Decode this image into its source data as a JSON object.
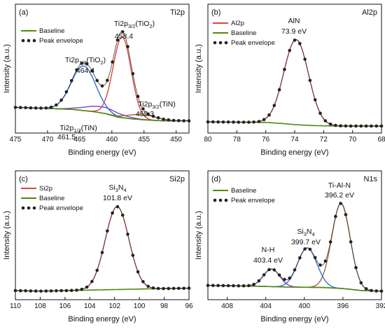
{
  "colors": {
    "baseline": "#4f8a10",
    "envelope_dots": "#222222",
    "envelope_line": "#3b3b3b",
    "red": "#e0453a",
    "blue": "#2f6fd6",
    "purple": "#7b3fd6",
    "brown": "#9a6a3a"
  },
  "chart_data": [
    {
      "panel": "(a)",
      "tag": "Ti2p",
      "type": "line",
      "xlabel": "Binding energy (eV)",
      "ylabel": "Intensity (a.u.)",
      "xlim": [
        475,
        448
      ],
      "xticks": [
        475,
        470,
        465,
        460,
        455,
        450
      ],
      "ylim": [
        0,
        100
      ],
      "legend": [
        "Baseline",
        "Peak envelope"
      ],
      "legend_position": "top-left",
      "baseline": [
        [
          475,
          18
        ],
        [
          470,
          17
        ],
        [
          466,
          16
        ],
        [
          463,
          14
        ],
        [
          461,
          12
        ],
        [
          459,
          8.5
        ],
        [
          457,
          7
        ],
        [
          455,
          6
        ],
        [
          452,
          5
        ],
        [
          448,
          5
        ]
      ],
      "peaks": [
        {
          "color": "red",
          "center": 458.4,
          "height": 78,
          "width": 1.4
        },
        {
          "color": "blue",
          "center": 464.4,
          "height": 43,
          "width": 1.9
        },
        {
          "color": "purple",
          "center": 461.5,
          "height": 6,
          "width": 2.6
        },
        {
          "color": "brown",
          "center": 455.3,
          "height": 5,
          "width": 2.2
        }
      ],
      "annotations": [
        {
          "id": "a1",
          "label": "Ti2p",
          "sub": "3/2",
          "suffix": "(TiO",
          "sub2": "2",
          "suffix2": ")",
          "value": "458.4"
        },
        {
          "id": "a2",
          "label": "Ti2p",
          "sub": "1/2",
          "suffix": "(TiO",
          "sub2": "2",
          "suffix2": ")",
          "value": "464.4"
        },
        {
          "id": "a3",
          "label": "Ti2p",
          "sub": "3/2",
          "suffix": "(TiN)",
          "value": "455.3"
        },
        {
          "id": "a4",
          "label": "Ti2p",
          "sub": "1/2",
          "suffix": "(TiN)",
          "value": "461.5"
        }
      ]
    },
    {
      "panel": "(b)",
      "tag": "Al2p",
      "type": "line",
      "xlabel": "Binding energy (eV)",
      "ylabel": "Intensity (a.u.)",
      "xlim": [
        80,
        68
      ],
      "xticks": [
        80,
        78,
        76,
        74,
        72,
        70,
        68
      ],
      "ylim": [
        0,
        100
      ],
      "legend": [
        "Al2p",
        "Baseline",
        "Peak envelope"
      ],
      "legend_position": "top-left",
      "baseline": [
        [
          80,
          4
        ],
        [
          76,
          3.5
        ],
        [
          75,
          2.6
        ],
        [
          74,
          1.4
        ],
        [
          73,
          0.6
        ],
        [
          72,
          0.2
        ],
        [
          70,
          0
        ],
        [
          68,
          0
        ]
      ],
      "peaks": [
        {
          "color": "red",
          "center": 73.9,
          "height": 82,
          "width": 0.85
        }
      ],
      "annotations": [
        {
          "id": "b1",
          "label": "AlN",
          "value": "73.9 eV"
        }
      ]
    },
    {
      "panel": "(c)",
      "tag": "Si2p",
      "type": "line",
      "xlabel": "Binding energy (eV)",
      "ylabel": "Intensity (a.u.)",
      "xlim": [
        110,
        96
      ],
      "xticks": [
        110,
        108,
        106,
        104,
        102,
        100,
        98,
        96
      ],
      "ylim": [
        0,
        100
      ],
      "legend": [
        "Si2p",
        "Baseline",
        "Peak envelope"
      ],
      "legend_position": "top-left",
      "baseline": [
        [
          110,
          2
        ],
        [
          108,
          1.5
        ],
        [
          104,
          2.5
        ],
        [
          100,
          3.5
        ],
        [
          98,
          4
        ],
        [
          96,
          4.3
        ]
      ],
      "peaks": [
        {
          "color": "red",
          "center": 101.8,
          "height": 80,
          "width": 0.95
        }
      ],
      "annotations": [
        {
          "id": "c1",
          "label": "Si",
          "sub": "3",
          "suffix": "N",
          "sub2": "4",
          "value": "101.8 eV"
        }
      ]
    },
    {
      "panel": "(d)",
      "tag": "N1s",
      "type": "line",
      "xlabel": "Binding energy (eV)",
      "ylabel": "Intensity (a.u.)",
      "xlim": [
        410,
        392
      ],
      "xticks": [
        408,
        404,
        400,
        396,
        392
      ],
      "ylim": [
        0,
        100
      ],
      "legend": [
        "Baseline",
        "Peak envelope"
      ],
      "legend_position": "top-left",
      "baseline": [
        [
          410,
          7
        ],
        [
          406,
          6.5
        ],
        [
          402,
          5.5
        ],
        [
          398,
          5
        ],
        [
          396,
          4
        ],
        [
          394,
          2
        ],
        [
          392,
          1.5
        ]
      ],
      "peaks": [
        {
          "color": "brown",
          "center": 396.2,
          "height": 82,
          "width": 0.95
        },
        {
          "color": "blue",
          "center": 399.7,
          "height": 38,
          "width": 1.0
        },
        {
          "color": "purple",
          "center": 403.4,
          "height": 17,
          "width": 0.85
        }
      ],
      "annotations": [
        {
          "id": "d1",
          "label": "Ti-Al-N",
          "value": "396.2 eV"
        },
        {
          "id": "d2",
          "label": "Si",
          "sub": "3",
          "suffix": "N",
          "sub2": "4",
          "value": "399.7 eV"
        },
        {
          "id": "d3",
          "label": "N-H",
          "value": "403.4 eV"
        }
      ]
    }
  ]
}
